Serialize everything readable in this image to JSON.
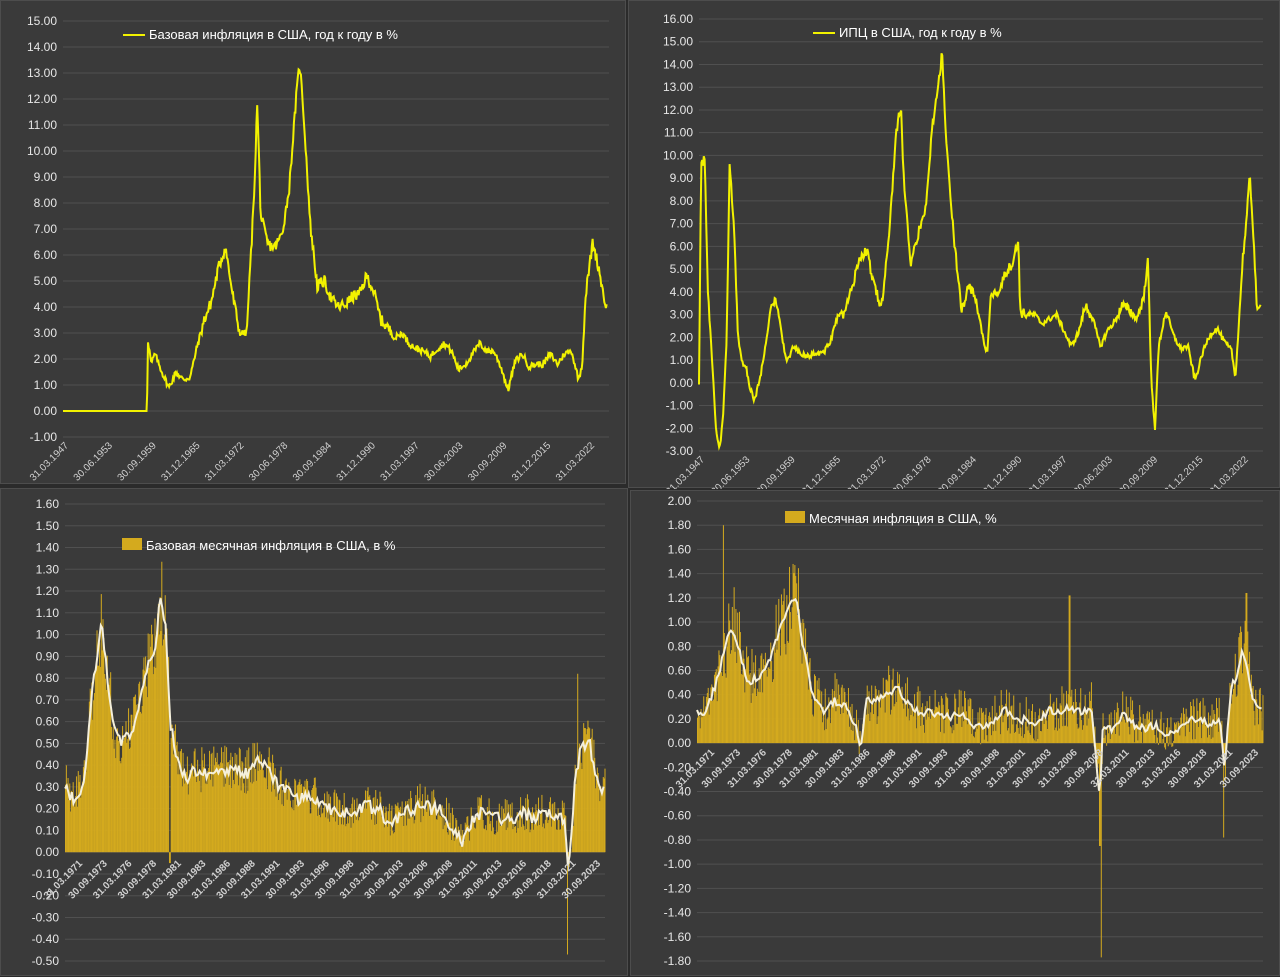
{
  "chart_data": [
    {
      "id": "core_yoy",
      "type": "line",
      "legend": "Базовая инфляция в США, год к году в %",
      "color": "#f2f200",
      "ylim": [
        -1,
        15
      ],
      "yticks": [
        "-1.00",
        "0.00",
        "1.00",
        "2.00",
        "3.00",
        "4.00",
        "5.00",
        "6.00",
        "7.00",
        "8.00",
        "9.00",
        "10.00",
        "11.00",
        "12.00",
        "13.00",
        "14.00",
        "15.00"
      ],
      "xticks": [
        "31.03.1947",
        "30.06.1953",
        "30.09.1959",
        "31.12.1965",
        "31.03.1972",
        "30.06.1978",
        "30.09.1984",
        "31.12.1990",
        "31.03.1997",
        "30.06.2003",
        "30.09.2009",
        "31.12.2015",
        "31.03.2022"
      ],
      "x": [
        1947,
        1958.9,
        1959,
        1959.5,
        1960,
        1961,
        1962,
        1963,
        1964,
        1965,
        1966,
        1967,
        1968,
        1969,
        1970,
        1971,
        1972,
        1973,
        1974,
        1974.5,
        1975,
        1976,
        1977,
        1978,
        1979,
        1980,
        1980.5,
        1981,
        1981.5,
        1982,
        1983,
        1984,
        1985,
        1986,
        1987,
        1988,
        1989,
        1990,
        1991,
        1992,
        1993,
        1994,
        1995,
        1996,
        1997,
        1998,
        1999,
        2000,
        2001,
        2002,
        2003,
        2004,
        2005,
        2006,
        2007,
        2008,
        2009,
        2010,
        2011,
        2012,
        2013,
        2014,
        2015,
        2016,
        2017,
        2018,
        2019,
        2020,
        2020.5,
        2021,
        2021.5,
        2022,
        2022.5,
        2023,
        2023.5,
        2024
      ],
      "y": [
        0,
        0,
        2.8,
        1.8,
        2.2,
        1.5,
        0.9,
        1.5,
        1.2,
        1.3,
        2.5,
        3.5,
        4.2,
        5.5,
        6.3,
        4.5,
        3.0,
        3.0,
        8.0,
        11.8,
        7.5,
        6.4,
        6.3,
        6.8,
        8.5,
        12.0,
        13.4,
        11.7,
        9.5,
        7.2,
        4.8,
        5.0,
        4.3,
        4.0,
        4.1,
        4.4,
        4.5,
        5.2,
        4.6,
        3.5,
        3.2,
        2.8,
        3.0,
        2.6,
        2.4,
        2.3,
        2.1,
        2.4,
        2.6,
        2.3,
        1.6,
        1.8,
        2.2,
        2.6,
        2.3,
        2.3,
        1.7,
        0.8,
        1.9,
        2.2,
        1.7,
        1.8,
        1.8,
        2.2,
        1.8,
        2.2,
        2.3,
        1.2,
        1.8,
        4.5,
        5.5,
        6.5,
        5.9,
        5.3,
        4.5,
        3.9
      ]
    },
    {
      "id": "cpi_yoy",
      "type": "line",
      "legend": "ИПЦ в США, год к году в %",
      "color": "#f2f200",
      "ylim": [
        -3,
        16
      ],
      "yticks": [
        "-3.00",
        "-2.00",
        "-1.00",
        "0.00",
        "1.00",
        "2.00",
        "3.00",
        "4.00",
        "5.00",
        "6.00",
        "7.00",
        "8.00",
        "9.00",
        "10.00",
        "11.00",
        "12.00",
        "13.00",
        "14.00",
        "15.00",
        "16.00"
      ],
      "xticks": [
        "31.03.1947",
        "30.06.1953",
        "30.09.1959",
        "31.12.1965",
        "31.03.1972",
        "30.06.1978",
        "30.09.1984",
        "31.12.1990",
        "31.03.1997",
        "30.06.2003",
        "30.09.2009",
        "31.12.2015",
        "31.03.2022"
      ],
      "x": [
        1947,
        1947.3,
        1947.8,
        1948.2,
        1948.8,
        1949.3,
        1949.8,
        1950.3,
        1950.8,
        1951.2,
        1951.8,
        1952.3,
        1952.8,
        1953.5,
        1954,
        1954.5,
        1955,
        1955.5,
        1956,
        1957,
        1957.5,
        1958,
        1959,
        1960,
        1961,
        1962,
        1963,
        1964,
        1965,
        1966,
        1967,
        1968,
        1969,
        1970,
        1971,
        1972,
        1973,
        1974,
        1974.7,
        1975,
        1976,
        1977,
        1978,
        1979,
        1980,
        1980.3,
        1981,
        1982,
        1983,
        1984,
        1985,
        1986,
        1986.5,
        1987,
        1988,
        1989,
        1990,
        1990.8,
        1991,
        1992,
        1993,
        1994,
        1995,
        1996,
        1997,
        1998,
        1999,
        2000,
        2001,
        2002,
        2003,
        2004,
        2005,
        2006,
        2007,
        2008,
        2008.5,
        2009,
        2009.5,
        2010,
        2011,
        2012,
        2013,
        2014,
        2015,
        2016,
        2017,
        2018,
        2019,
        2020,
        2020.5,
        2021,
        2021.5,
        2022,
        2022.5,
        2023,
        2023.5,
        2024
      ],
      "y": [
        0,
        9.7,
        9.8,
        4.0,
        1.0,
        -2.0,
        -3.0,
        -1.5,
        2.0,
        9.5,
        7.0,
        2.2,
        1.0,
        0.6,
        -0.2,
        -0.8,
        -0.3,
        0.4,
        1.5,
        3.6,
        3.5,
        2.8,
        0.9,
        1.6,
        1.2,
        1.2,
        1.3,
        1.3,
        1.8,
        2.9,
        3.1,
        4.2,
        5.5,
        5.8,
        4.3,
        3.3,
        6.2,
        11.0,
        12.2,
        9.3,
        5.2,
        6.5,
        7.5,
        11.3,
        13.5,
        14.6,
        10.0,
        6.2,
        3.2,
        4.3,
        3.6,
        1.8,
        1.3,
        3.7,
        4.1,
        4.8,
        5.3,
        6.3,
        3.1,
        3.0,
        3.0,
        2.6,
        2.8,
        3.0,
        2.3,
        1.6,
        2.2,
        3.4,
        2.8,
        1.6,
        2.3,
        2.7,
        3.4,
        3.2,
        2.8,
        3.8,
        5.6,
        0.0,
        -2.0,
        1.6,
        3.2,
        2.1,
        1.5,
        1.6,
        0.1,
        1.3,
        2.1,
        2.4,
        1.8,
        1.4,
        0.2,
        2.6,
        5.4,
        7.0,
        9.1,
        6.5,
        3.0,
        3.4
      ]
    },
    {
      "id": "core_mom",
      "type": "bar+line",
      "legend": "Базовая месячная инфляция в США, в %",
      "bar_color": "#d4aa1e",
      "line_color": "#f5f0dc",
      "ylim": [
        -0.5,
        1.6
      ],
      "yticks": [
        "-0.50",
        "-0.40",
        "-0.30",
        "-0.20",
        "-0.10",
        "0.00",
        "0.10",
        "0.20",
        "0.30",
        "0.40",
        "0.50",
        "0.60",
        "0.70",
        "0.80",
        "0.90",
        "1.00",
        "1.10",
        "1.20",
        "1.30",
        "1.40",
        "1.50",
        "1.60"
      ],
      "xticks": [
        "31.03.1971",
        "30.09.1973",
        "31.03.1976",
        "30.09.1978",
        "31.03.1981",
        "30.09.1983",
        "31.03.1986",
        "30.09.1988",
        "31.03.1991",
        "30.09.1993",
        "31.03.1996",
        "30.09.1998",
        "31.03.2001",
        "30.09.2003",
        "31.03.2006",
        "30.09.2008",
        "31.03.2011",
        "30.09.2013",
        "31.03.2016",
        "30.09.2018",
        "31.03.2021",
        "30.09.2023"
      ],
      "x_start": 1971.2,
      "x_end": 2024.0,
      "x": [
        1971.2,
        1972,
        1973,
        1974,
        1974.8,
        1975.5,
        1976,
        1977,
        1978,
        1979,
        1980,
        1980.5,
        1981,
        1981.5,
        1982,
        1983,
        1984,
        1985,
        1986,
        1987,
        1988,
        1989,
        1990,
        1991,
        1992,
        1993,
        1994,
        1995,
        1996,
        1997,
        1998,
        1999,
        2000,
        2001,
        2002,
        2003,
        2004,
        2005,
        2006,
        2007,
        2008,
        2009,
        2010,
        2011,
        2012,
        2013,
        2014,
        2015,
        2016,
        2017,
        2018,
        2019,
        2020,
        2020.4,
        2020.8,
        2021,
        2021.5,
        2022,
        2022.5,
        2023,
        2023.5,
        2024
      ],
      "smooth": [
        0.3,
        0.25,
        0.3,
        0.8,
        1.05,
        0.75,
        0.55,
        0.5,
        0.6,
        0.8,
        0.95,
        1.15,
        1.05,
        0.6,
        0.45,
        0.33,
        0.38,
        0.36,
        0.38,
        0.37,
        0.38,
        0.36,
        0.42,
        0.38,
        0.3,
        0.28,
        0.24,
        0.25,
        0.24,
        0.2,
        0.19,
        0.18,
        0.2,
        0.21,
        0.19,
        0.13,
        0.17,
        0.19,
        0.22,
        0.2,
        0.19,
        0.12,
        0.05,
        0.15,
        0.18,
        0.15,
        0.16,
        0.15,
        0.18,
        0.16,
        0.18,
        0.18,
        0.15,
        -0.05,
        0.1,
        0.3,
        0.45,
        0.5,
        0.5,
        0.38,
        0.3,
        0.28
      ]
    },
    {
      "id": "cpi_mom",
      "type": "bar+line",
      "legend": "Месячная инфляция в США, %",
      "bar_color": "#d4aa1e",
      "line_color": "#f5f0dc",
      "ylim": [
        -1.8,
        2.0
      ],
      "yticks": [
        "-1.80",
        "-1.60",
        "-1.40",
        "-1.20",
        "-1.00",
        "-0.80",
        "-0.60",
        "-0.40",
        "-0.20",
        "0.00",
        "0.20",
        "0.40",
        "0.60",
        "0.80",
        "1.00",
        "1.20",
        "1.40",
        "1.60",
        "1.80",
        "2.00"
      ],
      "xticks": [
        "31.03.1971",
        "30.09.1973",
        "31.03.1976",
        "30.09.1978",
        "31.03.1981",
        "30.09.1983",
        "31.03.1986",
        "30.09.1988",
        "31.03.1991",
        "30.09.1993",
        "31.03.1996",
        "30.09.1998",
        "31.03.2001",
        "30.09.2003",
        "31.03.2006",
        "30.09.2008",
        "31.03.2011",
        "30.09.2013",
        "31.03.2016",
        "30.09.2018",
        "31.03.2021",
        "30.09.2023"
      ],
      "x_start": 1971.2,
      "x_end": 2024.0,
      "x": [
        1971.2,
        1972,
        1973,
        1974,
        1974.5,
        1975,
        1976,
        1977,
        1978,
        1979,
        1980,
        1980.5,
        1981,
        1982,
        1983,
        1984,
        1985,
        1986,
        1986.5,
        1987,
        1988,
        1989,
        1990,
        1991,
        1992,
        1993,
        1994,
        1995,
        1996,
        1997,
        1998,
        1999,
        2000,
        2001,
        2002,
        2003,
        2004,
        2005,
        2006,
        2007,
        2008,
        2008.8,
        2009,
        2010,
        2011,
        2012,
        2013,
        2014,
        2015,
        2016,
        2017,
        2018,
        2019,
        2020,
        2020.4,
        2021,
        2021.5,
        2022,
        2022.5,
        2023,
        2023.5,
        2024
      ],
      "smooth": [
        0.25,
        0.25,
        0.5,
        0.85,
        0.95,
        0.8,
        0.5,
        0.55,
        0.7,
        0.95,
        1.15,
        1.2,
        0.85,
        0.4,
        0.25,
        0.35,
        0.3,
        0.15,
        -0.05,
        0.35,
        0.35,
        0.4,
        0.45,
        0.3,
        0.25,
        0.25,
        0.22,
        0.22,
        0.25,
        0.15,
        0.13,
        0.2,
        0.28,
        0.18,
        0.2,
        0.15,
        0.28,
        0.25,
        0.3,
        0.25,
        0.3,
        -0.5,
        0.1,
        0.12,
        0.25,
        0.15,
        0.12,
        0.15,
        0.05,
        0.1,
        0.18,
        0.2,
        0.15,
        0.2,
        -0.25,
        0.45,
        0.55,
        0.75,
        0.65,
        0.35,
        0.3,
        0.25
      ]
    }
  ]
}
